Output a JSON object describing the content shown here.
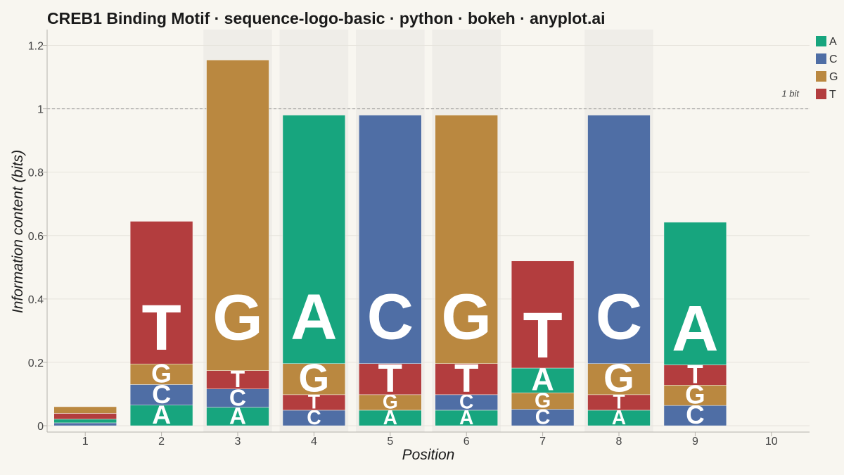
{
  "chart_data": {
    "type": "bar",
    "stacked": true,
    "title": "CREB1 Binding Motif · sequence-logo-basic · python · bokeh · anyplot.ai",
    "xlabel": "Position",
    "ylabel": "Information content (bits)",
    "xlim": [
      0.5,
      10.5
    ],
    "ylim": [
      -0.02,
      1.25
    ],
    "x_ticks": [
      1,
      2,
      3,
      4,
      5,
      6,
      7,
      8,
      9,
      10
    ],
    "y_ticks": [
      0,
      0.2,
      0.4,
      0.6,
      0.8,
      1,
      1.2
    ],
    "y_tick_labels": [
      "0",
      "0.2",
      "0.4",
      "0.6",
      "0.8",
      "1",
      "1.2"
    ],
    "grid": true,
    "legend_position": "top-right",
    "legend": [
      {
        "key": "A",
        "label": "A",
        "color": "#17A57E"
      },
      {
        "key": "C",
        "label": "C",
        "color": "#4F6EA5"
      },
      {
        "key": "G",
        "label": "G",
        "color": "#BA8840"
      },
      {
        "key": "T",
        "label": "T",
        "color": "#B33D3E"
      }
    ],
    "highlighted_positions": [
      3,
      4,
      5,
      6,
      8
    ],
    "reference_line": {
      "y": 1,
      "label": "1 bit"
    },
    "positions": [
      {
        "x": 1,
        "stack": [
          {
            "base": "C",
            "h": 0.009
          },
          {
            "base": "A",
            "h": 0.012
          },
          {
            "base": "T",
            "h": 0.018
          },
          {
            "base": "G",
            "h": 0.021
          }
        ]
      },
      {
        "x": 2,
        "stack": [
          {
            "base": "A",
            "h": 0.065
          },
          {
            "base": "C",
            "h": 0.065
          },
          {
            "base": "G",
            "h": 0.065
          },
          {
            "base": "T",
            "h": 0.45
          }
        ]
      },
      {
        "x": 3,
        "stack": [
          {
            "base": "A",
            "h": 0.058
          },
          {
            "base": "C",
            "h": 0.058
          },
          {
            "base": "T",
            "h": 0.058
          },
          {
            "base": "G",
            "h": 0.98
          }
        ]
      },
      {
        "x": 4,
        "stack": [
          {
            "base": "C",
            "h": 0.049
          },
          {
            "base": "T",
            "h": 0.049
          },
          {
            "base": "G",
            "h": 0.098
          },
          {
            "base": "A",
            "h": 0.784
          }
        ]
      },
      {
        "x": 5,
        "stack": [
          {
            "base": "A",
            "h": 0.049
          },
          {
            "base": "G",
            "h": 0.049
          },
          {
            "base": "T",
            "h": 0.098
          },
          {
            "base": "C",
            "h": 0.784
          }
        ]
      },
      {
        "x": 6,
        "stack": [
          {
            "base": "A",
            "h": 0.049
          },
          {
            "base": "C",
            "h": 0.049
          },
          {
            "base": "T",
            "h": 0.098
          },
          {
            "base": "G",
            "h": 0.784
          }
        ]
      },
      {
        "x": 7,
        "stack": [
          {
            "base": "C",
            "h": 0.052
          },
          {
            "base": "G",
            "h": 0.052
          },
          {
            "base": "A",
            "h": 0.078
          },
          {
            "base": "T",
            "h": 0.338
          }
        ]
      },
      {
        "x": 8,
        "stack": [
          {
            "base": "A",
            "h": 0.049
          },
          {
            "base": "T",
            "h": 0.049
          },
          {
            "base": "G",
            "h": 0.098
          },
          {
            "base": "C",
            "h": 0.784
          }
        ]
      },
      {
        "x": 9,
        "stack": [
          {
            "base": "C",
            "h": 0.064
          },
          {
            "base": "G",
            "h": 0.064
          },
          {
            "base": "T",
            "h": 0.064
          },
          {
            "base": "A",
            "h": 0.45
          }
        ]
      },
      {
        "x": 10,
        "stack": []
      }
    ]
  }
}
